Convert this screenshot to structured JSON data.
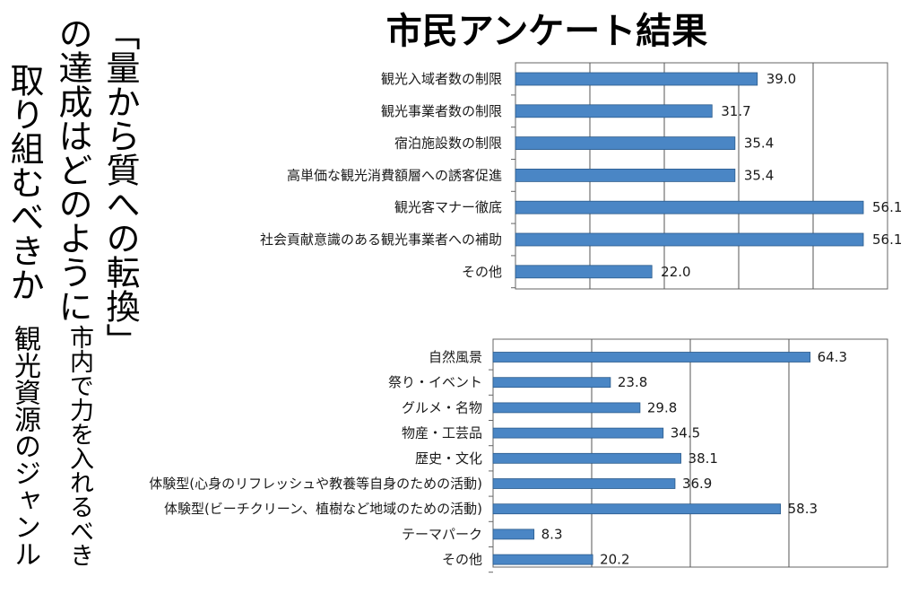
{
  "page": {
    "title": "市民アンケート結果"
  },
  "questions": {
    "q1_line1": "「量から質への転換」",
    "q1_line2": "の達成はどのように",
    "q1_line3": "取り組むべきか",
    "q2_line1": "市内で力を入れるべき",
    "q2_line2": "観光資源のジャンル"
  },
  "chart_data": [
    {
      "type": "bar",
      "orientation": "horizontal",
      "categories": [
        "観光入域者数の制限",
        "観光事業者数の制限",
        "宿泊施設数の制限",
        "高単価な観光消費額層への誘客促進",
        "観光客マナー徹底",
        "社会貢献意識のある観光事業者への補助",
        "その他"
      ],
      "values": [
        "39.0",
        "31.7",
        "35.4",
        "35.4",
        "56.1",
        "56.1",
        "22.0"
      ],
      "xlim": [
        0,
        60
      ],
      "grid": true,
      "bar_color": "#4a86c5"
    },
    {
      "type": "bar",
      "orientation": "horizontal",
      "categories": [
        "自然風景",
        "祭り・イベント",
        "グルメ・名物",
        "物産・工芸品",
        "歴史・文化",
        "体験型(心身のリフレッシュや教養等自身のための活動)",
        "体験型(ビーチクリーン、植樹など地域のための活動)",
        "テーマパーク",
        "その他"
      ],
      "values": [
        "64.3",
        "23.8",
        "29.8",
        "34.5",
        "38.1",
        "36.9",
        "58.3",
        "8.3",
        "20.2"
      ],
      "xlim": [
        0,
        80
      ],
      "grid": true,
      "bar_color": "#4a86c5"
    }
  ]
}
